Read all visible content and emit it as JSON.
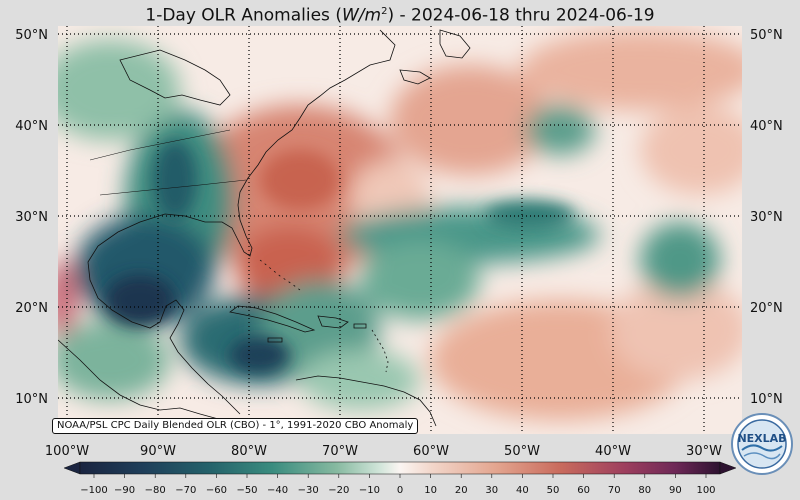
{
  "title": {
    "prefix": "1-Day OLR Anomalies (",
    "unit_base": "W/m",
    "unit_exp": "2",
    "suffix": ") - 2024-06-18 thru 2024-06-19"
  },
  "map": {
    "lat_labels_left": [
      "50°N",
      "40°N",
      "30°N",
      "20°N",
      "10°N"
    ],
    "lat_labels_right": [
      "50°N",
      "40°N",
      "30°N",
      "20°N",
      "10°N"
    ],
    "lon_labels": [
      "100°W",
      "90°W",
      "80°W",
      "70°W",
      "60°W",
      "50°W",
      "40°W",
      "30°W"
    ],
    "lon_range": [
      -101,
      -25
    ],
    "lat_range": [
      7,
      52
    ],
    "gridlines": "dotted",
    "colors": {
      "strong_negative": "#1a2e4a",
      "negative": "#2e7b73",
      "weak_negative": "#a9d2bf",
      "neutral": "#fbf3ef",
      "weak_positive": "#ecb9a4",
      "positive": "#d57d66",
      "strong_positive": "#8a2c5b"
    }
  },
  "source_label": "NOAA/PSL CPC Daily Blended OLR (CBO) - 1°, 1991-2020 CBO Anomaly",
  "colorbar": {
    "ticks": [
      "−100",
      "−90",
      "−80",
      "−70",
      "−60",
      "−50",
      "−40",
      "−30",
      "−20",
      "−10",
      "0",
      "10",
      "20",
      "30",
      "40",
      "50",
      "60",
      "70",
      "80",
      "90",
      "100"
    ],
    "min": -100,
    "max": 100,
    "extend": "both"
  },
  "logo": {
    "text": "NEXLAB"
  }
}
